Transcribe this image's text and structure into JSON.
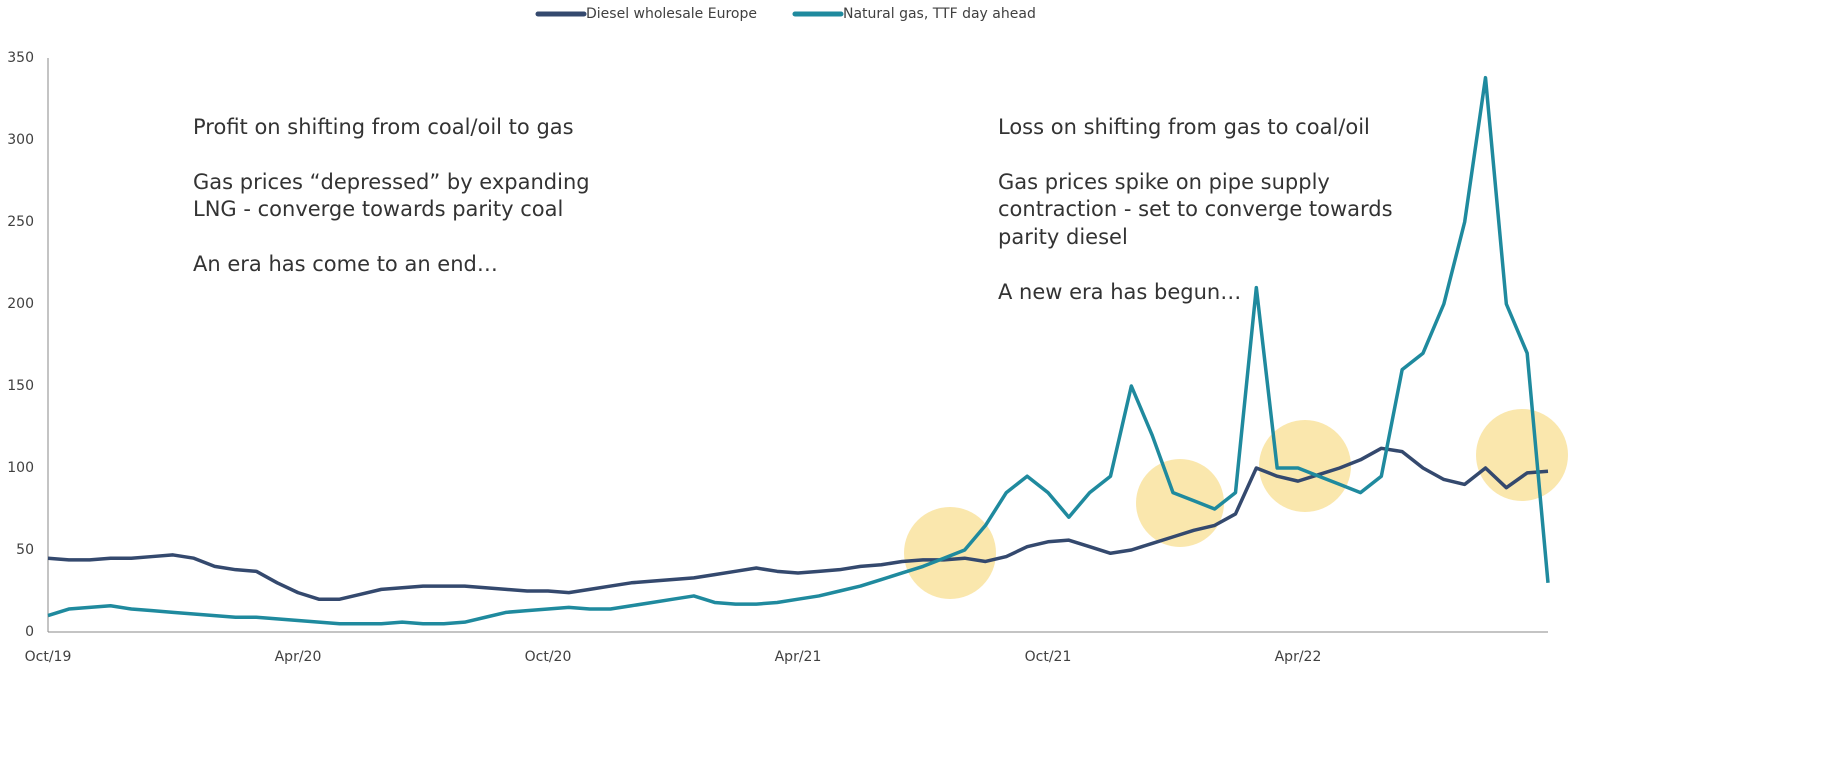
{
  "chart_data": {
    "type": "line",
    "categories": [
      "Oct/19",
      null,
      null,
      null,
      null,
      null,
      null,
      null,
      null,
      null,
      null,
      null,
      "Apr/20",
      null,
      null,
      null,
      null,
      null,
      null,
      null,
      null,
      null,
      null,
      null,
      "Oct/20",
      null,
      null,
      null,
      null,
      null,
      null,
      null,
      null,
      null,
      null,
      null,
      "Apr/21",
      null,
      null,
      null,
      null,
      null,
      null,
      null,
      null,
      null,
      null,
      null,
      "Oct/21",
      null,
      null,
      null,
      null,
      null,
      null,
      null,
      null,
      null,
      null,
      null,
      "Apr/22",
      null,
      null,
      null,
      null,
      null,
      null,
      null,
      null,
      null,
      null,
      null,
      null
    ],
    "series": [
      {
        "name": "Diesel wholesale Europe",
        "color": "#34496e",
        "values": [
          45,
          44,
          44,
          45,
          45,
          46,
          47,
          45,
          40,
          38,
          37,
          30,
          24,
          20,
          20,
          23,
          26,
          27,
          28,
          28,
          28,
          27,
          26,
          25,
          25,
          24,
          26,
          28,
          30,
          31,
          32,
          33,
          35,
          37,
          39,
          37,
          36,
          37,
          38,
          40,
          41,
          43,
          44,
          44,
          45,
          43,
          46,
          52,
          55,
          56,
          52,
          48,
          50,
          54,
          58,
          62,
          65,
          72,
          100,
          95,
          92,
          96,
          100,
          105,
          112,
          110,
          100,
          93,
          90,
          100,
          88,
          97,
          98
        ]
      },
      {
        "name": "Natural gas, TTF day ahead",
        "color": "#1f8a9e",
        "values": [
          10,
          14,
          15,
          16,
          14,
          13,
          12,
          11,
          10,
          9,
          9,
          8,
          7,
          6,
          5,
          5,
          5,
          6,
          5,
          5,
          6,
          9,
          12,
          13,
          14,
          15,
          14,
          14,
          16,
          18,
          20,
          22,
          18,
          17,
          17,
          18,
          20,
          22,
          25,
          28,
          32,
          36,
          40,
          45,
          50,
          65,
          85,
          95,
          85,
          70,
          85,
          95,
          150,
          120,
          85,
          80,
          75,
          85,
          210,
          100,
          100,
          95,
          90,
          85,
          95,
          160,
          170,
          200,
          250,
          338,
          200,
          170,
          30
        ]
      }
    ],
    "ylim": [
      0,
      350
    ],
    "yticks": [
      0,
      50,
      100,
      150,
      200,
      250,
      300,
      350
    ],
    "annotations": [
      [
        "Profit on shifting from coal/oil to gas",
        "Gas prices “depressed” by expanding",
        "LNG - converge towards parity coal",
        "An era has come to an end…"
      ],
      [
        "Loss on shifting from gas to coal/oil",
        "Gas prices spike on pipe supply",
        "contraction - set to converge towards",
        "parity diesel",
        "A new era has begun…"
      ]
    ]
  }
}
